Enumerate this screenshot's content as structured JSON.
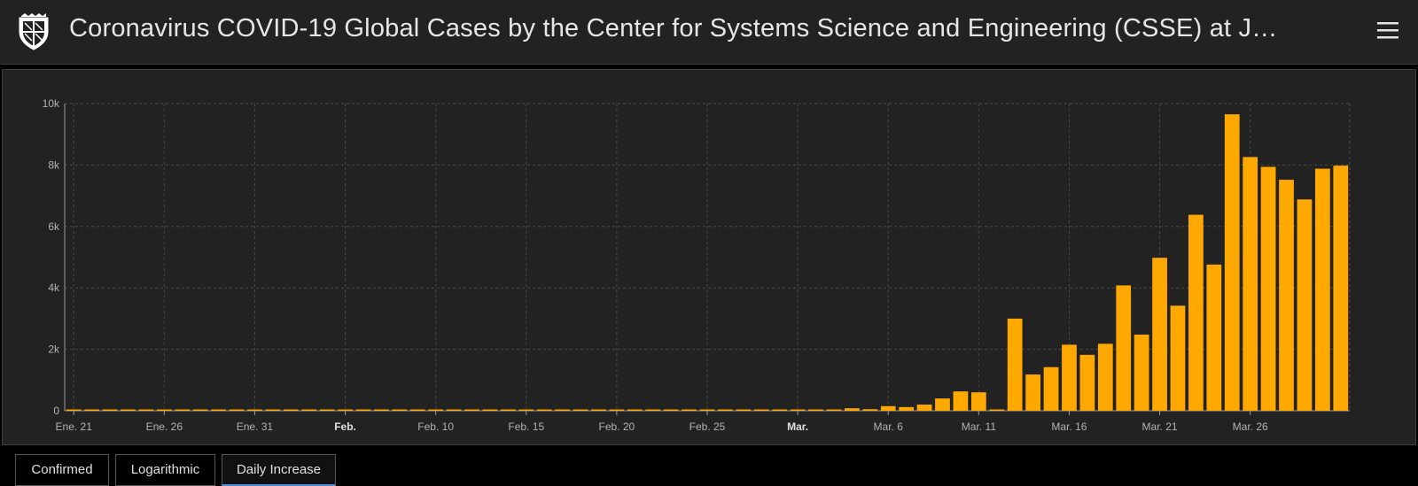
{
  "header": {
    "title": "Coronavirus COVID-19 Global Cases by the Center for Systems Science and Engineering (CSSE) at J…",
    "logo_icon": "university-shield-icon",
    "menu_icon": "hamburger-menu-icon"
  },
  "tabs": [
    {
      "label": "Confirmed",
      "active": false
    },
    {
      "label": "Logarithmic",
      "active": false
    },
    {
      "label": "Daily Increase",
      "active": true
    }
  ],
  "colors": {
    "bar": "#ffa800",
    "background": "#222222",
    "active_tab_underline": "#4f8fd9"
  },
  "chart_data": {
    "type": "bar",
    "title": "",
    "xlabel": "",
    "ylabel": "",
    "ylim": [
      0,
      10000
    ],
    "y_ticks": [
      "0",
      "2k",
      "4k",
      "6k",
      "8k",
      "10k"
    ],
    "grid": true,
    "x_start": "Ene. 21",
    "x_ticks": [
      {
        "label": "Ene. 21",
        "bold": false
      },
      {
        "label": "Ene. 26",
        "bold": false
      },
      {
        "label": "Ene. 31",
        "bold": false
      },
      {
        "label": "Feb.",
        "bold": true
      },
      {
        "label": "Feb. 10",
        "bold": false
      },
      {
        "label": "Feb. 15",
        "bold": false
      },
      {
        "label": "Feb. 20",
        "bold": false
      },
      {
        "label": "Feb. 25",
        "bold": false
      },
      {
        "label": "Mar.",
        "bold": true
      },
      {
        "label": "Mar. 6",
        "bold": false
      },
      {
        "label": "Mar. 11",
        "bold": false
      },
      {
        "label": "Mar. 16",
        "bold": false
      },
      {
        "label": "Mar. 21",
        "bold": false
      },
      {
        "label": "Mar. 26",
        "bold": false
      }
    ],
    "series": [
      {
        "values": [
          0,
          0,
          0,
          0,
          0,
          0,
          0,
          0,
          0,
          0,
          0,
          0,
          0,
          0,
          0,
          0,
          0,
          0,
          0,
          0,
          0,
          0,
          0,
          0,
          0,
          0,
          0,
          0,
          0,
          0,
          0,
          0,
          0,
          0,
          0,
          0,
          0,
          0,
          0,
          0,
          40,
          40,
          40,
          80,
          50,
          150,
          120,
          200,
          400,
          630,
          600,
          30,
          3000,
          1180,
          1420,
          2150,
          1820,
          2180,
          4080,
          2480,
          4980,
          3420,
          6380,
          4760,
          9650,
          8260,
          7940,
          7520,
          6880,
          7880,
          7980
        ]
      }
    ]
  }
}
